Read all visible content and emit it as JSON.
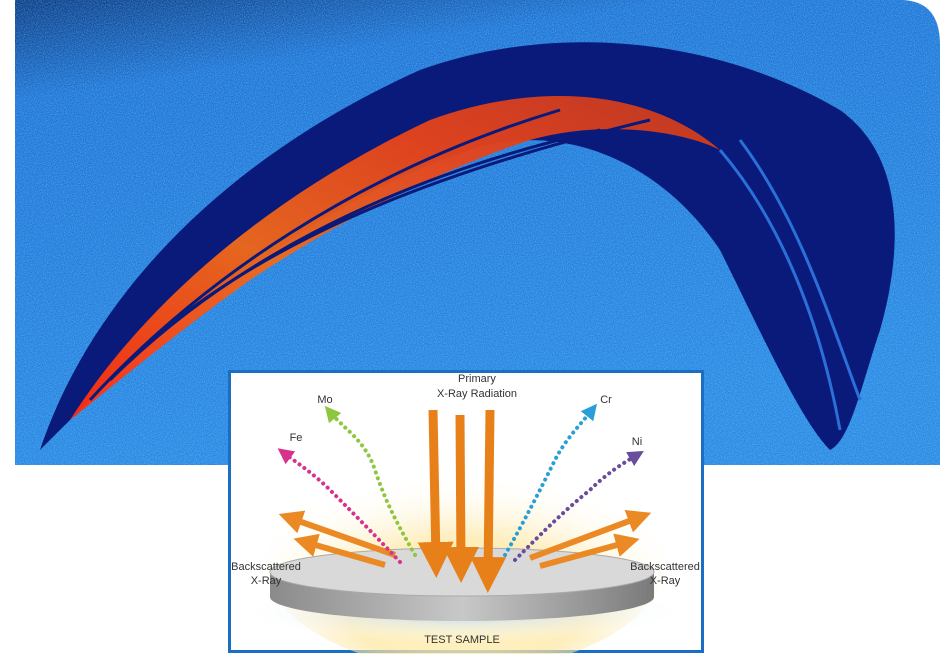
{
  "diagram": {
    "primary_label": [
      "Primary",
      "X-Ray Radiation"
    ],
    "elements": [
      {
        "label": "Mo",
        "color": "#8dc63f"
      },
      {
        "label": "Cr",
        "color": "#2a9fd6"
      },
      {
        "label": "Fe",
        "color": "#d6338c"
      },
      {
        "label": "Ni",
        "color": "#6a4c9c"
      }
    ],
    "backscattered_left": [
      "Backscattered",
      "X-Ray"
    ],
    "backscattered_right": [
      "Backscattered",
      "X-Ray"
    ],
    "sample_label": "TEST SAMPLE"
  }
}
